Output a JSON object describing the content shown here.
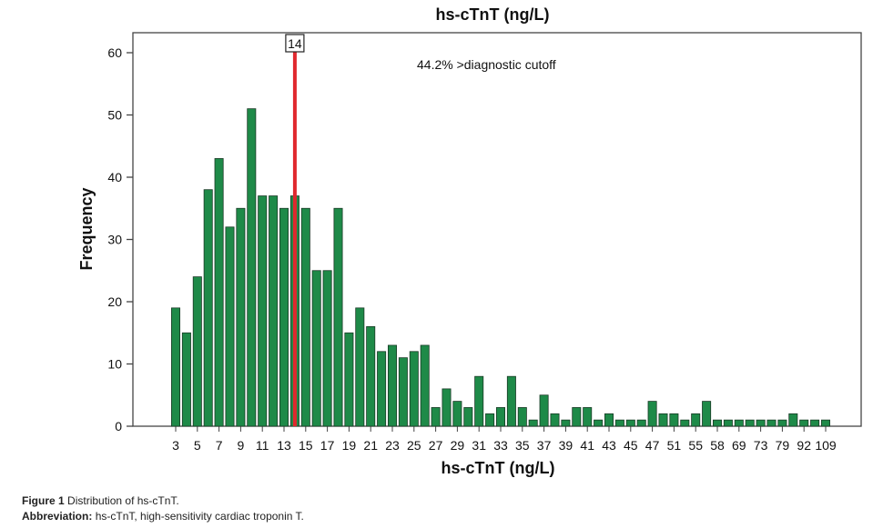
{
  "chart_data": {
    "type": "bar",
    "title": "hs-cTnT (ng/L)",
    "xlabel": "hs-cTnT (ng/L)",
    "ylabel": "Frequency",
    "ylim": [
      0,
      63
    ],
    "yticks": [
      0,
      10,
      20,
      30,
      40,
      50,
      60
    ],
    "xtick_labels": [
      "3",
      "5",
      "7",
      "9",
      "11",
      "13",
      "15",
      "17",
      "19",
      "21",
      "23",
      "25",
      "27",
      "29",
      "31",
      "33",
      "35",
      "37",
      "39",
      "41",
      "43",
      "45",
      "47",
      "51",
      "55",
      "58",
      "69",
      "73",
      "79",
      "92",
      "109"
    ],
    "values": [
      19,
      15,
      24,
      38,
      43,
      32,
      35,
      51,
      37,
      37,
      35,
      37,
      35,
      25,
      25,
      35,
      15,
      19,
      16,
      12,
      13,
      11,
      12,
      13,
      3,
      6,
      4,
      3,
      8,
      2,
      3,
      8,
      3,
      1,
      5,
      2,
      1,
      3,
      3,
      1,
      2,
      1,
      1,
      1,
      4,
      2,
      2,
      1,
      2,
      4,
      1,
      1,
      1,
      1,
      1,
      1,
      1,
      2,
      1,
      1,
      1
    ],
    "cutoff": {
      "value": 14,
      "label": "14",
      "color": "#e0282e"
    },
    "annotation": "44.2% >diagnostic cutoff",
    "bar_color": "#1e8a48",
    "grid": false
  },
  "caption": {
    "figure_label": "Figure 1",
    "figure_text": "Distribution of hs-cTnT.",
    "abbrev_label": "Abbreviation:",
    "abbrev_text": "hs-cTnT, high-sensitivity cardiac troponin T."
  }
}
